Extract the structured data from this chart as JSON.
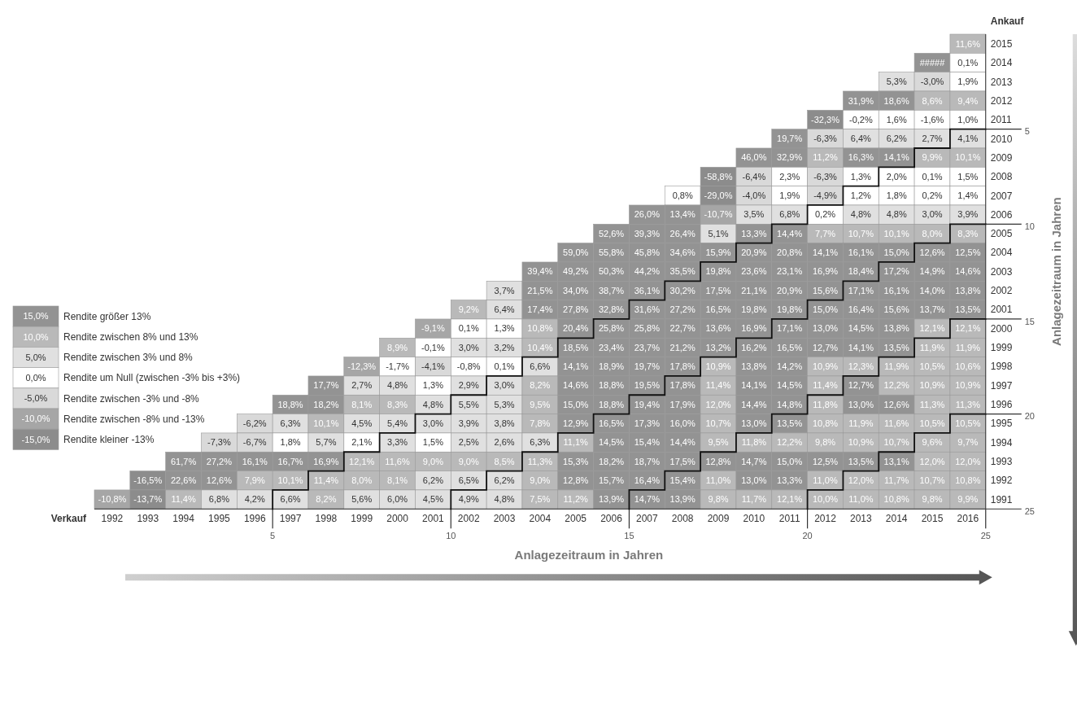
{
  "chart_data": [
    {
      "type": "heatmap",
      "xlabel": "Verkauf",
      "ylabel": "Ankauf",
      "x2label": "Anlagezeitraum in Jahren",
      "y2label": "Anlagezeitraum in Jahren",
      "x2lim": [
        0,
        25
      ],
      "x2ticks": [
        5,
        10,
        15,
        20,
        25
      ],
      "y2lim": [
        25,
        0
      ],
      "y2ticks": [
        5,
        10,
        15,
        20,
        25
      ],
      "categories": [
        "1992",
        "1993",
        "1994",
        "1995",
        "1996",
        "1997",
        "1998",
        "1999",
        "2000",
        "2001",
        "2002",
        "2003",
        "2004",
        "2005",
        "2006",
        "2007",
        "2008",
        "2009",
        "2010",
        "2011",
        "2012",
        "2013",
        "2014",
        "2015",
        "2016"
      ],
      "y_categories": [
        "2015",
        "2014",
        "2013",
        "2012",
        "2011",
        "2010",
        "2009",
        "2008",
        "2007",
        "2006",
        "2005",
        "2004",
        "2003",
        "2002",
        "2001",
        "2000",
        "1999",
        "1998",
        "1997",
        "1996",
        "1995",
        "1994",
        "1993",
        "1992",
        "1991"
      ],
      "cells": [
        [
          null,
          null,
          null,
          null,
          null,
          null,
          null,
          null,
          null,
          null,
          null,
          null,
          null,
          null,
          null,
          null,
          null,
          null,
          null,
          null,
          null,
          null,
          null,
          null,
          11.6
        ],
        [
          null,
          null,
          null,
          null,
          null,
          null,
          null,
          null,
          null,
          null,
          null,
          null,
          null,
          null,
          null,
          null,
          null,
          null,
          null,
          null,
          null,
          null,
          null,
          null,
          0.1
        ],
        [
          null,
          null,
          null,
          null,
          null,
          null,
          null,
          null,
          null,
          null,
          null,
          null,
          null,
          null,
          null,
          null,
          null,
          null,
          null,
          null,
          null,
          null,
          5.3,
          -3.0,
          1.9
        ],
        [
          null,
          null,
          null,
          null,
          null,
          null,
          null,
          null,
          null,
          null,
          null,
          null,
          null,
          null,
          null,
          null,
          null,
          null,
          null,
          null,
          null,
          31.9,
          18.6,
          8.6,
          9.4
        ],
        [
          null,
          null,
          null,
          null,
          null,
          null,
          null,
          null,
          null,
          null,
          null,
          null,
          null,
          null,
          null,
          null,
          null,
          null,
          null,
          null,
          -32.3,
          -0.2,
          1.6,
          -1.6,
          1.0
        ],
        [
          null,
          null,
          null,
          null,
          null,
          null,
          null,
          null,
          null,
          null,
          null,
          null,
          null,
          null,
          null,
          null,
          null,
          null,
          null,
          19.7,
          -6.3,
          6.4,
          6.2,
          2.7,
          4.1
        ],
        [
          null,
          null,
          null,
          null,
          null,
          null,
          null,
          null,
          null,
          null,
          null,
          null,
          null,
          null,
          null,
          null,
          null,
          null,
          46.0,
          32.9,
          11.2,
          16.3,
          14.1,
          9.9,
          10.1
        ],
        [
          null,
          null,
          null,
          null,
          null,
          null,
          null,
          null,
          null,
          null,
          null,
          null,
          null,
          null,
          null,
          null,
          null,
          -58.8,
          -6.4,
          2.3,
          -6.3,
          1.3,
          2.0,
          0.1,
          1.5
        ],
        [
          null,
          null,
          null,
          null,
          null,
          null,
          null,
          null,
          null,
          null,
          null,
          null,
          null,
          null,
          null,
          null,
          0.8,
          -29.0,
          -4.0,
          1.9,
          -4.9,
          1.2,
          1.8,
          0.2,
          1.4
        ],
        [
          null,
          null,
          null,
          null,
          null,
          null,
          null,
          null,
          null,
          null,
          null,
          null,
          null,
          null,
          null,
          26.0,
          13.4,
          -10.7,
          3.5,
          6.8,
          0.2,
          4.8,
          4.8,
          3.0,
          3.9
        ],
        [
          null,
          null,
          null,
          null,
          null,
          null,
          null,
          null,
          null,
          null,
          null,
          null,
          null,
          null,
          52.6,
          39.3,
          26.4,
          5.1,
          13.3,
          14.4,
          7.7,
          10.7,
          10.1,
          8.0,
          8.3
        ],
        [
          null,
          null,
          null,
          null,
          null,
          null,
          null,
          null,
          null,
          null,
          null,
          null,
          null,
          59.0,
          55.8,
          45.8,
          34.6,
          15.9,
          20.9,
          20.8,
          14.1,
          16.1,
          15.0,
          12.6,
          12.5
        ],
        [
          null,
          null,
          null,
          null,
          null,
          null,
          null,
          null,
          null,
          null,
          null,
          null,
          39.4,
          49.2,
          50.3,
          44.2,
          35.5,
          19.8,
          23.6,
          23.1,
          16.9,
          18.4,
          17.2,
          14.9,
          14.6
        ],
        [
          null,
          null,
          null,
          null,
          null,
          null,
          null,
          null,
          null,
          null,
          null,
          3.7,
          21.5,
          34.0,
          38.7,
          36.1,
          30.2,
          17.5,
          21.1,
          20.9,
          15.6,
          17.1,
          16.1,
          14.0,
          13.8
        ],
        [
          null,
          null,
          null,
          null,
          null,
          null,
          null,
          null,
          null,
          null,
          9.2,
          6.4,
          17.4,
          27.8,
          32.8,
          31.6,
          27.2,
          16.5,
          19.8,
          19.8,
          15.0,
          16.4,
          15.6,
          13.7,
          13.5
        ],
        [
          null,
          null,
          null,
          null,
          null,
          null,
          null,
          null,
          null,
          -9.1,
          0.1,
          1.3,
          10.8,
          20.4,
          25.8,
          25.8,
          22.7,
          13.6,
          16.9,
          17.1,
          13.0,
          14.5,
          13.8,
          12.1,
          12.1
        ],
        [
          null,
          null,
          null,
          null,
          null,
          null,
          null,
          null,
          8.9,
          -0.1,
          3.0,
          3.2,
          10.4,
          18.5,
          23.4,
          23.7,
          21.2,
          13.2,
          16.2,
          16.5,
          12.7,
          14.1,
          13.5,
          11.9,
          11.9
        ],
        [
          null,
          null,
          null,
          null,
          null,
          null,
          null,
          -12.3,
          -1.7,
          -4.1,
          -0.8,
          0.1,
          6.6,
          14.1,
          18.9,
          19.7,
          17.8,
          10.9,
          13.8,
          14.2,
          10.9,
          12.3,
          11.9,
          10.5,
          10.6
        ],
        [
          null,
          null,
          null,
          null,
          null,
          null,
          17.7,
          2.7,
          4.8,
          1.3,
          2.9,
          3.0,
          8.2,
          14.6,
          18.8,
          19.5,
          17.8,
          11.4,
          14.1,
          14.5,
          11.4,
          12.7,
          12.2,
          10.9,
          10.9
        ],
        [
          null,
          null,
          null,
          null,
          null,
          18.8,
          18.2,
          8.1,
          8.3,
          4.8,
          5.5,
          5.3,
          9.5,
          15.0,
          18.8,
          19.4,
          17.9,
          12.0,
          14.4,
          14.8,
          11.8,
          13.0,
          12.6,
          11.3,
          11.3
        ],
        [
          null,
          null,
          null,
          null,
          -6.2,
          6.3,
          10.1,
          4.5,
          5.4,
          3.0,
          3.9,
          3.8,
          7.8,
          12.9,
          16.5,
          17.3,
          16.0,
          10.7,
          13.0,
          13.5,
          10.8,
          11.9,
          11.6,
          10.5,
          10.5
        ],
        [
          null,
          null,
          null,
          -7.3,
          -6.7,
          1.8,
          5.7,
          2.1,
          3.3,
          1.5,
          2.5,
          2.6,
          6.3,
          11.1,
          14.5,
          15.4,
          14.4,
          9.5,
          11.8,
          12.2,
          9.8,
          10.9,
          10.7,
          9.6,
          9.7
        ],
        [
          null,
          null,
          61.7,
          27.2,
          16.1,
          16.7,
          16.9,
          12.1,
          11.6,
          9.0,
          9.0,
          8.5,
          11.3,
          15.3,
          18.2,
          18.7,
          17.5,
          12.8,
          14.7,
          15.0,
          12.5,
          13.5,
          13.1,
          12.0,
          12.0
        ],
        [
          null,
          -16.5,
          22.6,
          12.6,
          7.9,
          10.1,
          11.4,
          8.0,
          8.1,
          6.2,
          6.5,
          6.2,
          9.0,
          12.8,
          15.7,
          16.4,
          15.4,
          11.0,
          13.0,
          13.3,
          11.0,
          12.0,
          11.7,
          10.7,
          10.8
        ],
        [
          -10.8,
          -13.7,
          11.4,
          6.8,
          4.2,
          6.6,
          8.2,
          5.6,
          6.0,
          4.5,
          4.9,
          4.8,
          7.5,
          11.2,
          13.9,
          14.7,
          13.9,
          9.8,
          11.7,
          12.1,
          10.0,
          11.0,
          10.8,
          9.8,
          9.9
        ]
      ],
      "cell_labels": [
        [
          null,
          null,
          null,
          null,
          null,
          null,
          null,
          null,
          null,
          null,
          null,
          null,
          null,
          null,
          null,
          null,
          null,
          null,
          null,
          null,
          null,
          null,
          null,
          null,
          "11,6%"
        ],
        [
          null,
          null,
          null,
          null,
          null,
          null,
          null,
          null,
          null,
          null,
          null,
          null,
          null,
          null,
          null,
          null,
          null,
          null,
          null,
          null,
          null,
          null,
          null,
          "#####",
          "0,1%"
        ],
        [
          null,
          null,
          null,
          null,
          null,
          null,
          null,
          null,
          null,
          null,
          null,
          null,
          null,
          null,
          null,
          null,
          null,
          null,
          null,
          null,
          null,
          null,
          "5,3%",
          "-3,0%",
          "1,9%"
        ],
        [
          null,
          null,
          null,
          null,
          null,
          null,
          null,
          null,
          null,
          null,
          null,
          null,
          null,
          null,
          null,
          null,
          null,
          null,
          null,
          null,
          null,
          "31,9%",
          "18,6%",
          "8,6%",
          "9,4%"
        ],
        [
          null,
          null,
          null,
          null,
          null,
          null,
          null,
          null,
          null,
          null,
          null,
          null,
          null,
          null,
          null,
          null,
          null,
          null,
          null,
          null,
          "-32,3%",
          "-0,2%",
          "1,6%",
          "-1,6%",
          "1,0%"
        ],
        [
          null,
          null,
          null,
          null,
          null,
          null,
          null,
          null,
          null,
          null,
          null,
          null,
          null,
          null,
          null,
          null,
          null,
          null,
          null,
          "19,7%",
          "-6,3%",
          "6,4%",
          "6,2%",
          "2,7%",
          "4,1%"
        ],
        [
          null,
          null,
          null,
          null,
          null,
          null,
          null,
          null,
          null,
          null,
          null,
          null,
          null,
          null,
          null,
          null,
          null,
          null,
          "46,0%",
          "32,9%",
          "11,2%",
          "16,3%",
          "14,1%",
          "9,9%",
          "10,1%"
        ],
        [
          null,
          null,
          null,
          null,
          null,
          null,
          null,
          null,
          null,
          null,
          null,
          null,
          null,
          null,
          null,
          null,
          null,
          "-58,8%",
          "-6,4%",
          "2,3%",
          "-6,3%",
          "1,3%",
          "2,0%",
          "0,1%",
          "1,5%"
        ],
        [
          null,
          null,
          null,
          null,
          null,
          null,
          null,
          null,
          null,
          null,
          null,
          null,
          null,
          null,
          null,
          null,
          "0,8%",
          "-29,0%",
          "-4,0%",
          "1,9%",
          "-4,9%",
          "1,2%",
          "1,8%",
          "0,2%",
          "1,4%"
        ],
        [
          null,
          null,
          null,
          null,
          null,
          null,
          null,
          null,
          null,
          null,
          null,
          null,
          null,
          null,
          null,
          "26,0%",
          "13,4%",
          "-10,7%",
          "3,5%",
          "6,8%",
          "0,2%",
          "4,8%",
          "4,8%",
          "3,0%",
          "3,9%"
        ],
        [
          null,
          null,
          null,
          null,
          null,
          null,
          null,
          null,
          null,
          null,
          null,
          null,
          null,
          null,
          "52,6%",
          "39,3%",
          "26,4%",
          "5,1%",
          "13,3%",
          "14,4%",
          "7,7%",
          "10,7%",
          "10,1%",
          "8,0%",
          "8,3%"
        ],
        [
          null,
          null,
          null,
          null,
          null,
          null,
          null,
          null,
          null,
          null,
          null,
          null,
          null,
          "59,0%",
          "55,8%",
          "45,8%",
          "34,6%",
          "15,9%",
          "20,9%",
          "20,8%",
          "14,1%",
          "16,1%",
          "15,0%",
          "12,6%",
          "12,5%"
        ],
        [
          null,
          null,
          null,
          null,
          null,
          null,
          null,
          null,
          null,
          null,
          null,
          null,
          "39,4%",
          "49,2%",
          "50,3%",
          "44,2%",
          "35,5%",
          "19,8%",
          "23,6%",
          "23,1%",
          "16,9%",
          "18,4%",
          "17,2%",
          "14,9%",
          "14,6%"
        ],
        [
          null,
          null,
          null,
          null,
          null,
          null,
          null,
          null,
          null,
          null,
          null,
          "3,7%",
          "21,5%",
          "34,0%",
          "38,7%",
          "36,1%",
          "30,2%",
          "17,5%",
          "21,1%",
          "20,9%",
          "15,6%",
          "17,1%",
          "16,1%",
          "14,0%",
          "13,8%"
        ],
        [
          null,
          null,
          null,
          null,
          null,
          null,
          null,
          null,
          null,
          null,
          "9,2%",
          "6,4%",
          "17,4%",
          "27,8%",
          "32,8%",
          "31,6%",
          "27,2%",
          "16,5%",
          "19,8%",
          "19,8%",
          "15,0%",
          "16,4%",
          "15,6%",
          "13,7%",
          "13,5%"
        ],
        [
          null,
          null,
          null,
          null,
          null,
          null,
          null,
          null,
          null,
          "-9,1%",
          "0,1%",
          "1,3%",
          "10,8%",
          "20,4%",
          "25,8%",
          "25,8%",
          "22,7%",
          "13,6%",
          "16,9%",
          "17,1%",
          "13,0%",
          "14,5%",
          "13,8%",
          "12,1%",
          "12,1%"
        ],
        [
          null,
          null,
          null,
          null,
          null,
          null,
          null,
          null,
          "8,9%",
          "-0,1%",
          "3,0%",
          "3,2%",
          "10,4%",
          "18,5%",
          "23,4%",
          "23,7%",
          "21,2%",
          "13,2%",
          "16,2%",
          "16,5%",
          "12,7%",
          "14,1%",
          "13,5%",
          "11,9%",
          "11,9%"
        ],
        [
          null,
          null,
          null,
          null,
          null,
          null,
          null,
          "-12,3%",
          "-1,7%",
          "-4,1%",
          "-0,8%",
          "0,1%",
          "6,6%",
          "14,1%",
          "18,9%",
          "19,7%",
          "17,8%",
          "10,9%",
          "13,8%",
          "14,2%",
          "10,9%",
          "12,3%",
          "11,9%",
          "10,5%",
          "10,6%"
        ],
        [
          null,
          null,
          null,
          null,
          null,
          null,
          "17,7%",
          "2,7%",
          "4,8%",
          "1,3%",
          "2,9%",
          "3,0%",
          "8,2%",
          "14,6%",
          "18,8%",
          "19,5%",
          "17,8%",
          "11,4%",
          "14,1%",
          "14,5%",
          "11,4%",
          "12,7%",
          "12,2%",
          "10,9%",
          "10,9%"
        ],
        [
          null,
          null,
          null,
          null,
          null,
          "18,8%",
          "18,2%",
          "8,1%",
          "8,3%",
          "4,8%",
          "5,5%",
          "5,3%",
          "9,5%",
          "15,0%",
          "18,8%",
          "19,4%",
          "17,9%",
          "12,0%",
          "14,4%",
          "14,8%",
          "11,8%",
          "13,0%",
          "12,6%",
          "11,3%",
          "11,3%"
        ],
        [
          null,
          null,
          null,
          null,
          "-6,2%",
          "6,3%",
          "10,1%",
          "4,5%",
          "5,4%",
          "3,0%",
          "3,9%",
          "3,8%",
          "7,8%",
          "12,9%",
          "16,5%",
          "17,3%",
          "16,0%",
          "10,7%",
          "13,0%",
          "13,5%",
          "10,8%",
          "11,9%",
          "11,6%",
          "10,5%",
          "10,5%"
        ],
        [
          null,
          null,
          null,
          "-7,3%",
          "-6,7%",
          "1,8%",
          "5,7%",
          "2,1%",
          "3,3%",
          "1,5%",
          "2,5%",
          "2,6%",
          "6,3%",
          "11,1%",
          "14,5%",
          "15,4%",
          "14,4%",
          "9,5%",
          "11,8%",
          "12,2%",
          "9,8%",
          "10,9%",
          "10,7%",
          "9,6%",
          "9,7%"
        ],
        [
          null,
          null,
          "61,7%",
          "27,2%",
          "16,1%",
          "16,7%",
          "16,9%",
          "12,1%",
          "11,6%",
          "9,0%",
          "9,0%",
          "8,5%",
          "11,3%",
          "15,3%",
          "18,2%",
          "18,7%",
          "17,5%",
          "12,8%",
          "14,7%",
          "15,0%",
          "12,5%",
          "13,5%",
          "13,1%",
          "12,0%",
          "12,0%"
        ],
        [
          null,
          "-16,5%",
          "22,6%",
          "12,6%",
          "7,9%",
          "10,1%",
          "11,4%",
          "8,0%",
          "8,1%",
          "6,2%",
          "6,5%",
          "6,2%",
          "9,0%",
          "12,8%",
          "15,7%",
          "16,4%",
          "15,4%",
          "11,0%",
          "13,0%",
          "13,3%",
          "11,0%",
          "12,0%",
          "11,7%",
          "10,7%",
          "10,8%"
        ],
        [
          "-10,8%",
          "-13,7%",
          "11,4%",
          "6,8%",
          "4,2%",
          "6,6%",
          "8,2%",
          "5,6%",
          "6,0%",
          "4,5%",
          "4,9%",
          "4,8%",
          "7,5%",
          "11,2%",
          "13,9%",
          "14,7%",
          "13,9%",
          "9,8%",
          "11,7%",
          "12,1%",
          "10,0%",
          "11,0%",
          "10,8%",
          "9,8%",
          "9,9%"
        ]
      ]
    },
    {
      "type": "heatmap",
      "categories": [
        null
      ],
      "y_categories": [
        "Rendite größer 13%",
        "Rendite zwischen 8% und 13%",
        "Rendite zwischen 3% und 8%",
        "Rendite um Null (zwischen -3% bis +3%)",
        "Rendite zwischen -3% und -8%",
        "Rendite zwischen -8% und -13%",
        "Rendite kleiner -13%"
      ],
      "cells": [
        [
          15.0
        ],
        [
          10.0
        ],
        [
          5.0
        ],
        [
          0.0
        ],
        [
          -5.0
        ],
        [
          -10.0
        ],
        [
          -15.0
        ]
      ],
      "cell_labels": [
        [
          "15,0%"
        ],
        [
          "10,0%"
        ],
        [
          "5,0%"
        ],
        [
          "0,0%"
        ],
        [
          "-5,0%"
        ],
        [
          "-10,0%"
        ],
        [
          "-15,0%"
        ]
      ],
      "colors": [
        "#939393",
        "#b9b9b9",
        "#e0e0e0",
        "#ffffff",
        "#d9d9d9",
        "#a6a6a6",
        "#8c8c8c"
      ]
    }
  ]
}
